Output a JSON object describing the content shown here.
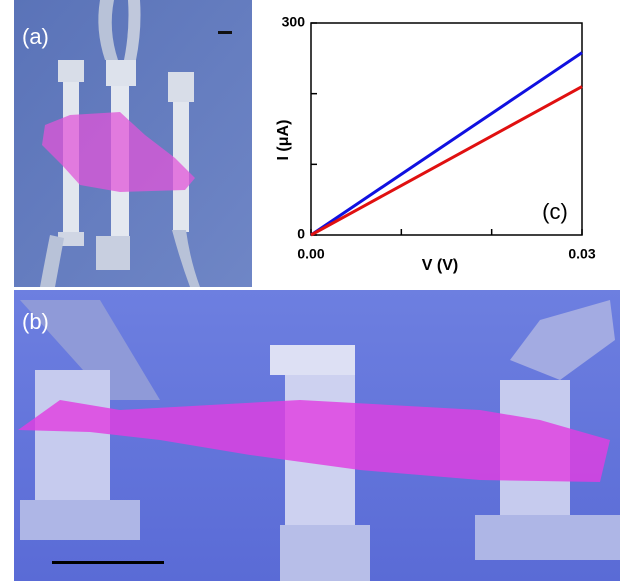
{
  "panels": {
    "a": "(a)",
    "b": "(b)"
  },
  "chart_data": {
    "type": "line",
    "annotation": "(c)",
    "x_label": "V (V)",
    "y_label": "I (μA)",
    "x": [
      0,
      0.005,
      0.01,
      0.015,
      0.02,
      0.025,
      0.03
    ],
    "series": [
      {
        "color": "#1010e0",
        "values": [
          0,
          43,
          86,
          129,
          172,
          215,
          258
        ]
      },
      {
        "color": "#e01010",
        "values": [
          0,
          35,
          70,
          105,
          140,
          175,
          210
        ]
      }
    ],
    "xlim": [
      0,
      0.03
    ],
    "ylim": [
      0,
      300
    ],
    "xticks": [
      {
        "value": 0,
        "label": "0.00"
      },
      {
        "value": 0.01,
        "label": null
      },
      {
        "value": 0.02,
        "label": null
      },
      {
        "value": 0.03,
        "label": "0.03"
      }
    ],
    "yticks": [
      0,
      {
        "value": 100,
        "label": null
      },
      {
        "value": 200,
        "label": null
      },
      300
    ]
  }
}
